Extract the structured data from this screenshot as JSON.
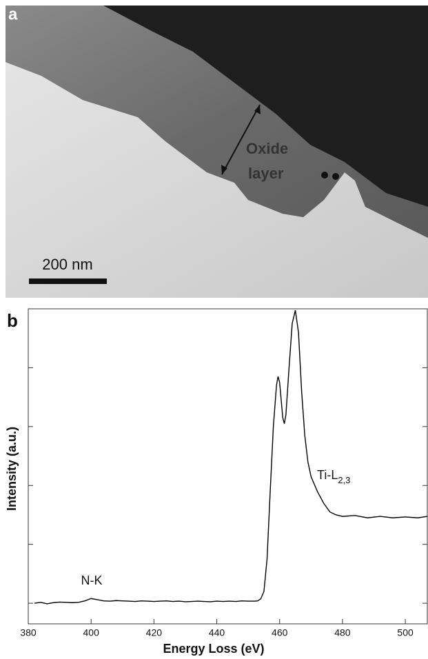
{
  "image_panel": {
    "label": "a",
    "annotation": [
      "Oxide",
      "layer"
    ],
    "scale_bar": "200 nm"
  },
  "chart_data": {
    "type": "line",
    "label": "b",
    "xlabel": "Energy Loss (eV)",
    "ylabel": "Intensity (a.u.)",
    "x": [
      382,
      384,
      386,
      388,
      390,
      392,
      394,
      396,
      398,
      400,
      402,
      404,
      406,
      408,
      410,
      412,
      414,
      416,
      418,
      420,
      422,
      424,
      426,
      428,
      430,
      432,
      434,
      436,
      438,
      440,
      442,
      444,
      446,
      448,
      450,
      452,
      453,
      454,
      455,
      456,
      457,
      458,
      459,
      459.5,
      460,
      461,
      461.5,
      462,
      463,
      464,
      465,
      466,
      467,
      468,
      469,
      470,
      472,
      474,
      476,
      478,
      480,
      484,
      488,
      492,
      496,
      500,
      504,
      507
    ],
    "series": [
      {
        "color": "#000000",
        "values": [
          0,
          0.3,
          -0.2,
          0.2,
          0.4,
          0.3,
          0.2,
          0.3,
          0.8,
          1.6,
          1.2,
          0.8,
          0.7,
          0.9,
          0.8,
          0.7,
          0.6,
          0.8,
          0.7,
          0.6,
          0.7,
          0.8,
          0.6,
          0.7,
          0.5,
          0.6,
          0.7,
          0.6,
          0.5,
          0.7,
          0.6,
          0.7,
          0.6,
          0.8,
          0.7,
          0.7,
          0.8,
          1.5,
          4,
          15,
          38,
          60,
          74,
          77,
          75,
          63,
          61,
          64,
          80,
          95,
          99.5,
          92,
          72,
          57,
          48,
          43,
          38,
          34,
          31,
          30,
          29.5,
          29.8,
          29,
          29.5,
          29,
          29.3,
          29,
          29.5
        ]
      }
    ],
    "xlim": [
      380,
      507
    ],
    "ylim": [
      -7,
      100
    ],
    "xticks": [
      380,
      400,
      420,
      440,
      460,
      480,
      500
    ],
    "yticks": [
      0,
      20,
      40,
      60,
      80,
      100
    ],
    "annotations": [
      {
        "text": "N-K"
      },
      {
        "text": "Ti-L",
        "subscript": "2,3"
      }
    ]
  }
}
